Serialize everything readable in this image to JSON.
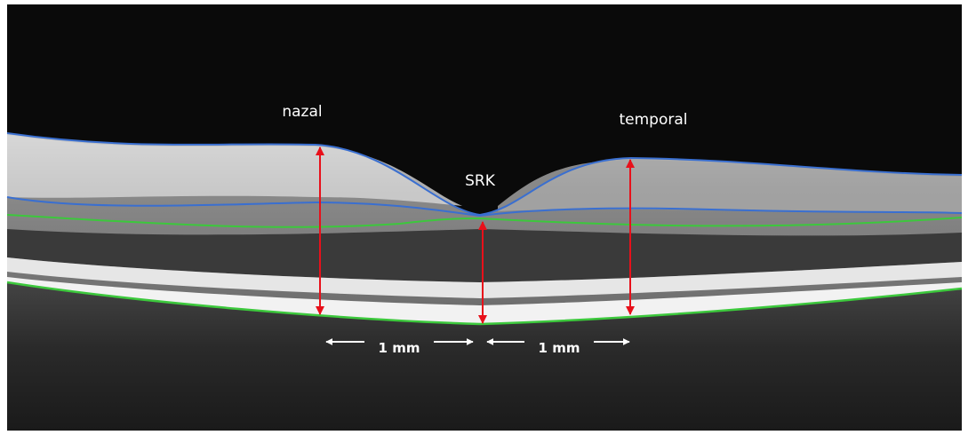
{
  "labels": {
    "nasal": "nazal",
    "temporal": "temporal",
    "center": "SRK",
    "scale_left": "1 mm",
    "scale_right": "1 mm"
  }
}
